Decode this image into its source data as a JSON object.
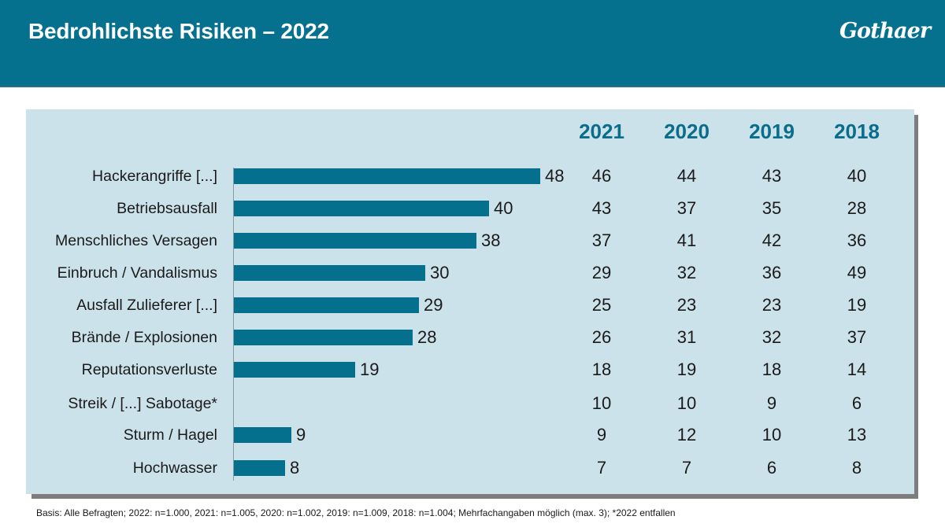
{
  "header": {
    "title": "Bedrohlichste Risiken – 2022",
    "logo": "Gothaer",
    "color": "#05718f"
  },
  "chart_data": {
    "type": "bar",
    "orientation": "horizontal",
    "title": "Bedrohlichste Risiken – 2022",
    "categories": [
      "Hackerangriffe [...]",
      "Betriebsausfall",
      "Menschliches Versagen",
      "Einbruch / Vandalismus",
      "Ausfall Zulieferer [...]",
      "Brände / Explosionen",
      "Reputationsverluste",
      "Streik / [...] Sabotage*",
      "Sturm / Hagel",
      "Hochwasser"
    ],
    "series": [
      {
        "name": "2022",
        "values": [
          48,
          40,
          38,
          30,
          29,
          28,
          19,
          null,
          9,
          8
        ],
        "color": "#04708e"
      }
    ],
    "xlim": [
      0,
      50
    ],
    "grid": false,
    "table": {
      "columns": [
        "2021",
        "2020",
        "2019",
        "2018"
      ],
      "rows": [
        [
          "46",
          "44",
          "43",
          "40"
        ],
        [
          "43",
          "37",
          "35",
          "28"
        ],
        [
          "37",
          "41",
          "42",
          "36"
        ],
        [
          "29",
          "32",
          "36",
          "49"
        ],
        [
          "25",
          "23",
          "23",
          "19"
        ],
        [
          "26",
          "31",
          "32",
          "37"
        ],
        [
          "18",
          "19",
          "18",
          "14"
        ],
        [
          "10",
          "10",
          "9",
          "6"
        ],
        [
          "9",
          "12",
          "10",
          "13"
        ],
        [
          "7",
          "7",
          "6",
          "8"
        ]
      ]
    }
  },
  "footnote": "Basis: Alle Befragten; 2022: n=1.000, 2021: n=1.005, 2020: n=1.002, 2019: n=1.009, 2018: n=1.004; Mehrfachangaben möglich (max. 3); *2022 entfallen"
}
